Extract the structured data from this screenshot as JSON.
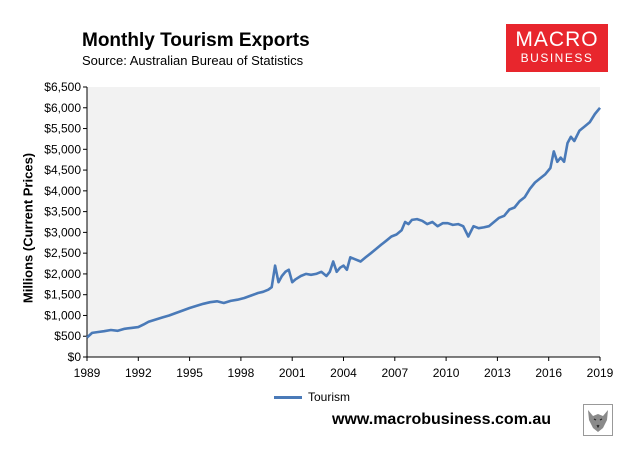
{
  "header": {
    "title": "Monthly Tourism Exports",
    "subtitle": "Source: Australian Bureau of Statistics"
  },
  "logo": {
    "line1": "MACRO",
    "line2": "BUSINESS"
  },
  "footer": {
    "website": "www.macrobusiness.com.au"
  },
  "colors": {
    "series": "#4a7ab8",
    "plot_bg": "#f2f2f2",
    "logo_bg": "#e8262d"
  },
  "chart_data": {
    "type": "line",
    "title": "Monthly Tourism Exports",
    "xlabel": "",
    "ylabel": "Millions (Current Prices)",
    "xlim": [
      1989,
      2019
    ],
    "ylim": [
      0,
      6500
    ],
    "grid": false,
    "legend": "bottom-center",
    "x_ticks": [
      1989,
      1992,
      1995,
      1998,
      2001,
      2004,
      2007,
      2010,
      2013,
      2016,
      2019
    ],
    "x_tick_labels": [
      "1989",
      "1992",
      "1995",
      "1998",
      "2001",
      "2004",
      "2007",
      "2010",
      "2013",
      "2016",
      "2019"
    ],
    "y_ticks": [
      0,
      500,
      1000,
      1500,
      2000,
      2500,
      3000,
      3500,
      4000,
      4500,
      5000,
      5500,
      6000,
      6500
    ],
    "y_tick_labels": [
      "$0",
      "$500",
      "$1,000",
      "$1,500",
      "$2,000",
      "$2,500",
      "$3,000",
      "$3,500",
      "$4,000",
      "$4,500",
      "$5,000",
      "$5,500",
      "$6,000",
      "$6,500"
    ],
    "series": [
      {
        "name": "Tourism",
        "x": [
          1989.0,
          1989.3,
          1989.6,
          1990.0,
          1990.4,
          1990.8,
          1991.2,
          1991.6,
          1992.0,
          1992.3,
          1992.6,
          1993.0,
          1993.4,
          1993.8,
          1994.2,
          1994.6,
          1995.0,
          1995.4,
          1995.8,
          1996.2,
          1996.6,
          1997.0,
          1997.4,
          1997.8,
          1998.2,
          1998.6,
          1999.0,
          1999.3,
          1999.6,
          1999.8,
          2000.0,
          2000.2,
          2000.4,
          2000.6,
          2000.8,
          2001.0,
          2001.2,
          2001.5,
          2001.8,
          2002.1,
          2002.4,
          2002.7,
          2003.0,
          2003.2,
          2003.4,
          2003.6,
          2003.8,
          2004.0,
          2004.2,
          2004.4,
          2004.7,
          2005.0,
          2005.3,
          2005.6,
          2005.9,
          2006.2,
          2006.5,
          2006.8,
          2007.1,
          2007.4,
          2007.6,
          2007.8,
          2008.0,
          2008.3,
          2008.6,
          2008.9,
          2009.2,
          2009.5,
          2009.8,
          2010.1,
          2010.4,
          2010.7,
          2011.0,
          2011.3,
          2011.6,
          2011.9,
          2012.2,
          2012.5,
          2012.8,
          2013.1,
          2013.4,
          2013.7,
          2014.0,
          2014.3,
          2014.6,
          2014.9,
          2015.2,
          2015.5,
          2015.8,
          2016.1,
          2016.3,
          2016.5,
          2016.7,
          2016.9,
          2017.1,
          2017.3,
          2017.5,
          2017.8,
          2018.1,
          2018.4,
          2018.7,
          2019.0
        ],
        "y": [
          470,
          580,
          600,
          620,
          650,
          630,
          680,
          700,
          720,
          780,
          850,
          900,
          950,
          1000,
          1060,
          1120,
          1180,
          1230,
          1280,
          1320,
          1340,
          1300,
          1350,
          1380,
          1420,
          1480,
          1540,
          1570,
          1620,
          1680,
          2200,
          1800,
          1950,
          2050,
          2100,
          1800,
          1870,
          1950,
          2000,
          1980,
          2000,
          2050,
          1950,
          2050,
          2300,
          2050,
          2150,
          2200,
          2100,
          2400,
          2350,
          2300,
          2400,
          2500,
          2600,
          2700,
          2800,
          2900,
          2950,
          3050,
          3250,
          3200,
          3300,
          3320,
          3280,
          3200,
          3250,
          3150,
          3220,
          3220,
          3180,
          3200,
          3150,
          2900,
          3150,
          3100,
          3120,
          3150,
          3250,
          3350,
          3400,
          3550,
          3600,
          3750,
          3850,
          4050,
          4200,
          4300,
          4400,
          4550,
          4950,
          4700,
          4800,
          4700,
          5150,
          5300,
          5200,
          5450,
          5550,
          5650,
          5850,
          6000
        ]
      }
    ]
  }
}
